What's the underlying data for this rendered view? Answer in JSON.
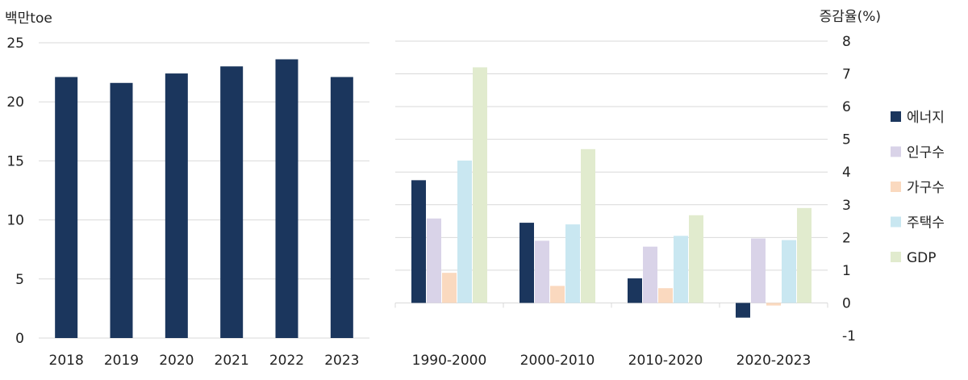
{
  "chart_data": [
    {
      "type": "bar",
      "ylabel": "백만toe",
      "ylim": [
        0,
        25
      ],
      "yticks": [
        "0",
        "5",
        "10",
        "15",
        "20",
        "25"
      ],
      "categories": [
        "2018",
        "2019",
        "2020",
        "2021",
        "2022",
        "2023"
      ],
      "values": [
        22.1,
        21.6,
        22.4,
        23.0,
        23.6,
        22.1
      ],
      "color": "#1b365d",
      "grid": true
    },
    {
      "type": "bar",
      "ylabel": "증감율(%)",
      "ylim": [
        -1,
        8
      ],
      "yticks": [
        "-1",
        "0",
        "1",
        "2",
        "3",
        "4",
        "5",
        "6",
        "7",
        "8"
      ],
      "categories": [
        "1990-2000",
        "2000-2010",
        "2010-2020",
        "2020-2023"
      ],
      "series": [
        {
          "name": "에너지",
          "color": "#1b365d",
          "values": [
            3.75,
            2.45,
            0.75,
            -0.45
          ]
        },
        {
          "name": "인구수",
          "color": "#d9d3e8",
          "values": [
            2.58,
            1.9,
            1.72,
            1.97
          ]
        },
        {
          "name": "가구수",
          "color": "#fad9bf",
          "values": [
            0.92,
            0.52,
            0.45,
            -0.08
          ]
        },
        {
          "name": "주택수",
          "color": "#c9e7f1",
          "values": [
            4.35,
            2.4,
            2.05,
            1.92
          ]
        },
        {
          "name": "GDP",
          "color": "#e1ebce",
          "values": [
            7.2,
            4.7,
            2.68,
            2.9
          ]
        }
      ],
      "legend": "right",
      "grid": true
    }
  ]
}
